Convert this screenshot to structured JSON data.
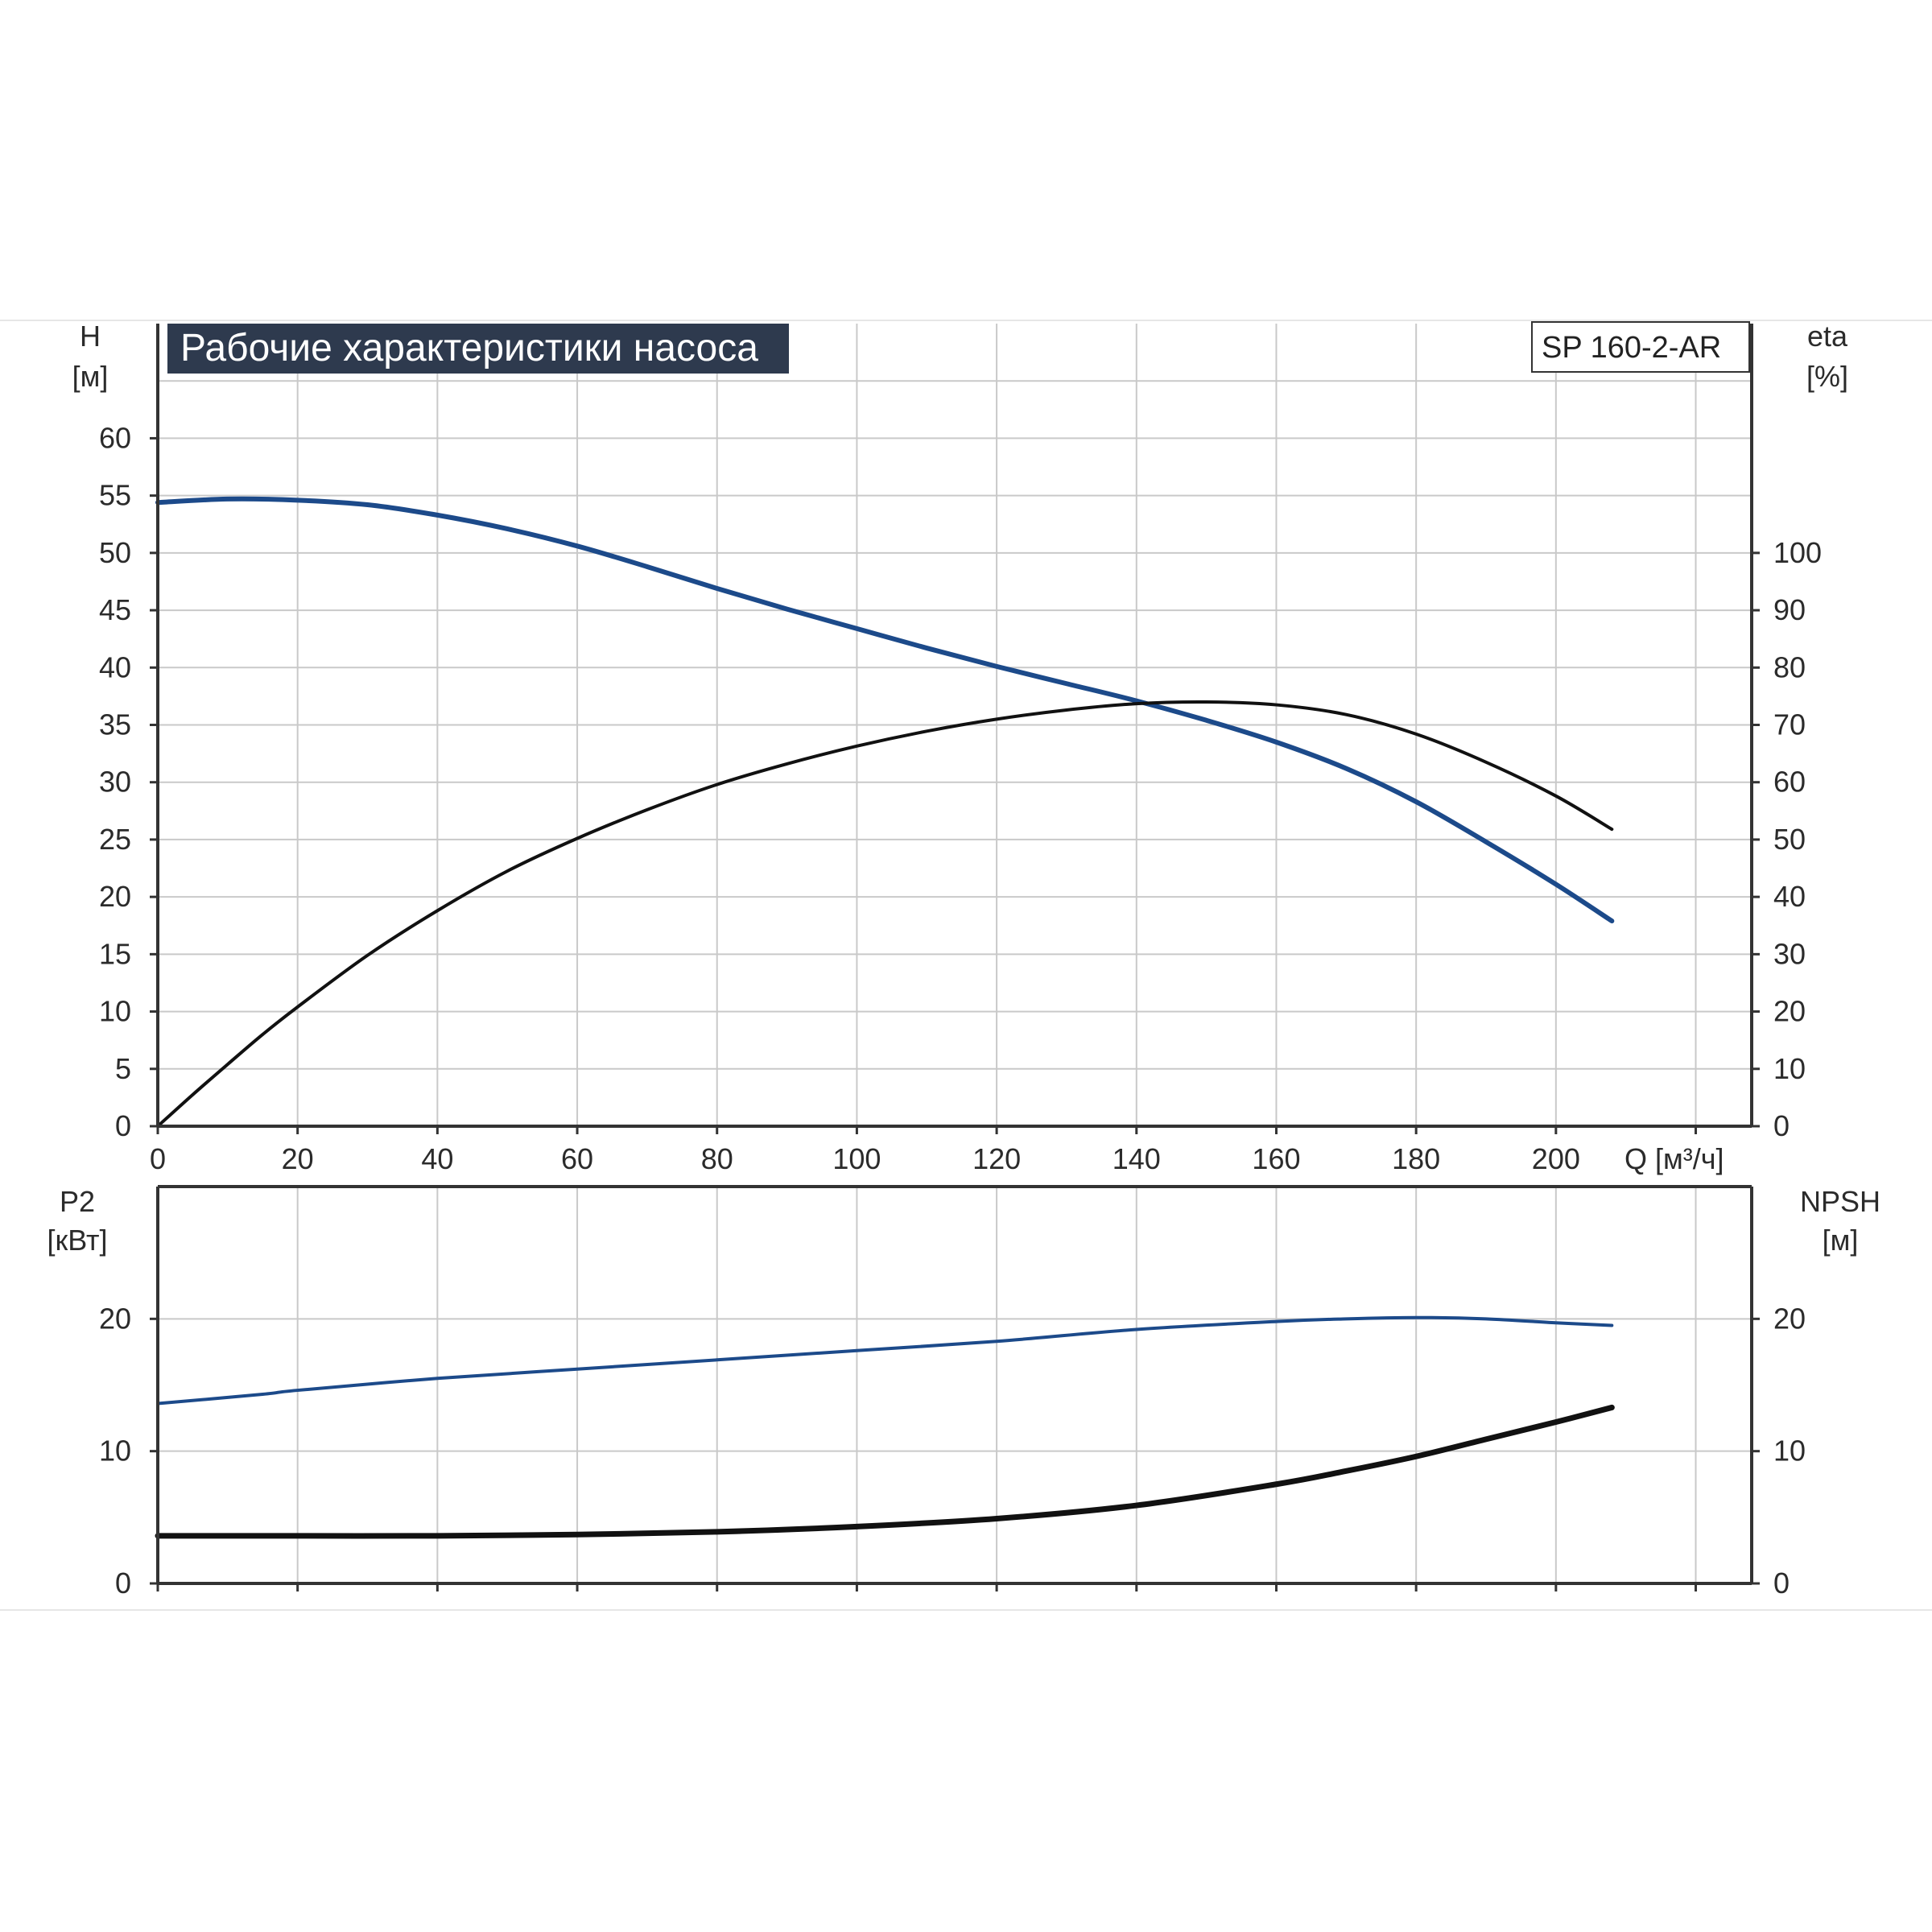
{
  "colors": {
    "grid": "#c9c9c9",
    "axis": "#333333",
    "title_bg": "#2e3a4e",
    "curve_blue": "#1c4a8a",
    "curve_black": "#111111"
  },
  "chart_data": [
    {
      "type": "line",
      "panel": "upper",
      "title": "Рабочие характеристики насоса",
      "model_label": "SP 160-2-AR",
      "xlabel": "Q [м³/ч]",
      "ylabel_left": {
        "line1": "H",
        "line2": "[м]"
      },
      "ylabel_right": {
        "line1": "eta",
        "line2": "[%]"
      },
      "xlim": [
        0,
        228
      ],
      "xticks": [
        0,
        20,
        40,
        60,
        80,
        100,
        120,
        140,
        160,
        180,
        200
      ],
      "xtick_labels": [
        "0",
        "20",
        "40",
        "60",
        "80",
        "100",
        "120",
        "140",
        "160",
        "180",
        "200"
      ],
      "ylim_left": [
        0,
        70
      ],
      "yticks_left": [
        0,
        5,
        10,
        15,
        20,
        25,
        30,
        35,
        40,
        45,
        50,
        55,
        60
      ],
      "ytick_labels_left": [
        "0",
        "5",
        "10",
        "15",
        "20",
        "25",
        "30",
        "35",
        "40",
        "45",
        "50",
        "55",
        "60"
      ],
      "ylim_right": [
        0,
        140
      ],
      "yticks_right": [
        0,
        10,
        20,
        30,
        40,
        50,
        60,
        70,
        80,
        90,
        100
      ],
      "ytick_labels_right": [
        "0",
        "10",
        "20",
        "30",
        "40",
        "50",
        "60",
        "70",
        "80",
        "90",
        "100"
      ],
      "grid": true,
      "series": [
        {
          "axis": "left",
          "color": "#1c4a8a",
          "points": [
            [
              0,
              54.4
            ],
            [
              10,
              54.7
            ],
            [
              20,
              54.6
            ],
            [
              30,
              54.2
            ],
            [
              40,
              53.3
            ],
            [
              50,
              52.1
            ],
            [
              60,
              50.6
            ],
            [
              70,
              48.8
            ],
            [
              80,
              46.9
            ],
            [
              90,
              45.1
            ],
            [
              100,
              43.4
            ],
            [
              110,
              41.7
            ],
            [
              120,
              40.1
            ],
            [
              130,
              38.6
            ],
            [
              140,
              37.1
            ],
            [
              150,
              35.4
            ],
            [
              160,
              33.5
            ],
            [
              170,
              31.2
            ],
            [
              180,
              28.3
            ],
            [
              190,
              24.8
            ],
            [
              200,
              21.1
            ],
            [
              208,
              17.9
            ]
          ]
        },
        {
          "axis": "right",
          "color": "#111111",
          "points": [
            [
              0,
              0
            ],
            [
              5,
              5.5
            ],
            [
              10,
              10.8
            ],
            [
              15,
              16.0
            ],
            [
              20,
              20.8
            ],
            [
              30,
              29.8
            ],
            [
              40,
              37.6
            ],
            [
              50,
              44.5
            ],
            [
              60,
              50.2
            ],
            [
              70,
              55.2
            ],
            [
              80,
              59.6
            ],
            [
              90,
              63.2
            ],
            [
              100,
              66.3
            ],
            [
              110,
              68.9
            ],
            [
              120,
              71.0
            ],
            [
              130,
              72.6
            ],
            [
              140,
              73.7
            ],
            [
              150,
              74.0
            ],
            [
              160,
              73.5
            ],
            [
              170,
              71.8
            ],
            [
              180,
              68.4
            ],
            [
              190,
              63.5
            ],
            [
              200,
              57.6
            ],
            [
              208,
              51.8
            ]
          ]
        }
      ]
    },
    {
      "type": "line",
      "panel": "lower",
      "ylabel_left": {
        "line1": "P2",
        "line2": "[кВт]"
      },
      "ylabel_right": {
        "line1": "NPSH",
        "line2": "[м]"
      },
      "xlim": [
        0,
        228
      ],
      "xticks": [
        0,
        20,
        40,
        60,
        80,
        100,
        120,
        140,
        160,
        180,
        200
      ],
      "ylim_left": [
        0,
        30
      ],
      "yticks_left": [
        0,
        10,
        20
      ],
      "ytick_labels_left": [
        "0",
        "10",
        "20"
      ],
      "ylim_right": [
        0,
        30
      ],
      "yticks_right": [
        0,
        10,
        20
      ],
      "ytick_labels_right": [
        "0",
        "10",
        "20"
      ],
      "grid": true,
      "series": [
        {
          "axis": "left",
          "color": "#1c4a8a",
          "points": [
            [
              0,
              13.6
            ],
            [
              15,
              14.3
            ],
            [
              20,
              14.6
            ],
            [
              40,
              15.5
            ],
            [
              60,
              16.2
            ],
            [
              80,
              16.9
            ],
            [
              100,
              17.6
            ],
            [
              120,
              18.3
            ],
            [
              140,
              19.2
            ],
            [
              160,
              19.8
            ],
            [
              170,
              20.0
            ],
            [
              180,
              20.1
            ],
            [
              190,
              20.0
            ],
            [
              200,
              19.7
            ],
            [
              208,
              19.5
            ]
          ]
        },
        {
          "axis": "right",
          "color": "#111111",
          "points": [
            [
              0,
              3.6
            ],
            [
              15,
              3.6
            ],
            [
              40,
              3.6
            ],
            [
              60,
              3.7
            ],
            [
              80,
              3.9
            ],
            [
              100,
              4.3
            ],
            [
              120,
              4.9
            ],
            [
              140,
              5.9
            ],
            [
              160,
              7.5
            ],
            [
              170,
              8.5
            ],
            [
              180,
              9.6
            ],
            [
              190,
              10.9
            ],
            [
              200,
              12.2
            ],
            [
              208,
              13.3
            ]
          ]
        }
      ]
    }
  ]
}
